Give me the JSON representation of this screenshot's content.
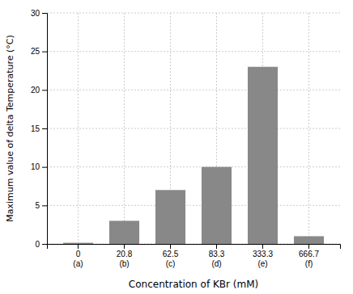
{
  "chart_data": {
    "type": "bar",
    "categories": [
      "0\n(a)",
      "20.8\n(b)",
      "62.5\n(c)",
      "83.3\n(d)",
      "333.3\n(e)",
      "666.7\n(f)"
    ],
    "values": [
      0.15,
      3.0,
      7.0,
      10.0,
      23.0,
      1.0
    ],
    "color": "#888888",
    "xlabel": "Concentration of KBr (mM)",
    "ylabel": "Maximum value of delta Temperature (°C)",
    "ylim": [
      0,
      30
    ],
    "yticks": [
      0,
      5,
      10,
      15,
      20,
      25,
      30
    ],
    "grid": true
  }
}
